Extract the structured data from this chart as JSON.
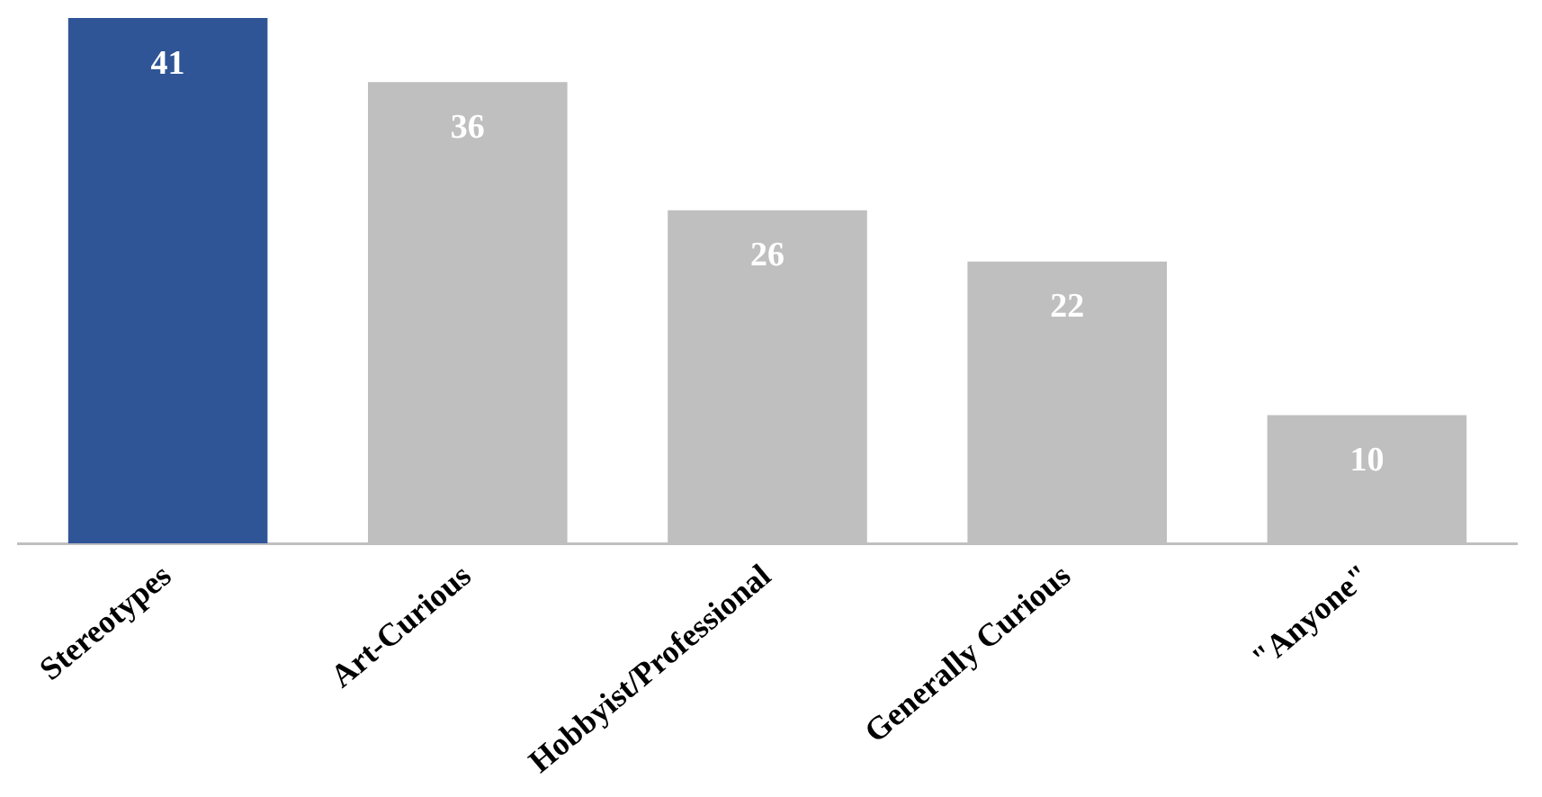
{
  "chart_data": {
    "type": "bar",
    "categories": [
      "Stereotypes",
      "Art-Curious",
      "Hobbyist/Professional",
      "Generally Curious",
      "\"Anyone\""
    ],
    "values": [
      41,
      36,
      26,
      22,
      10
    ],
    "colors": [
      "#2f5597",
      "#bfbfbf",
      "#bfbfbf",
      "#bfbfbf",
      "#bfbfbf"
    ],
    "data_labels": true,
    "grid": false,
    "legend": false
  }
}
